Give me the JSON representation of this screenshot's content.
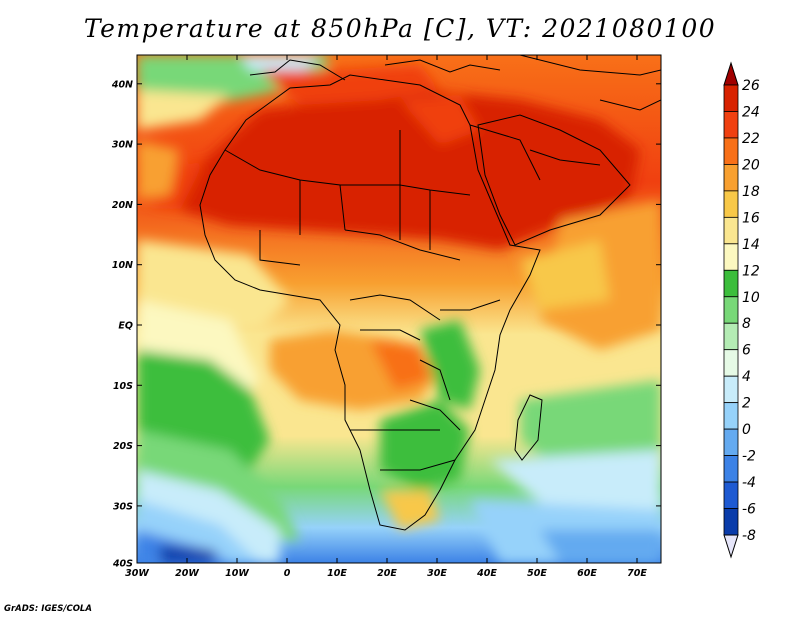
{
  "title": "Temperature at 850hPa [C], VT: 2021080100",
  "credit": "GrADS: IGES/COLA",
  "axes": {
    "x_ticks": [
      "30W",
      "20W",
      "10W",
      "0",
      "10E",
      "20E",
      "30E",
      "40E",
      "50E",
      "60E",
      "70E"
    ],
    "y_ticks": [
      "40N",
      "30N",
      "20N",
      "10N",
      "EQ",
      "10S",
      "20S",
      "30S",
      "40S"
    ],
    "lon_range": [
      -30,
      75
    ],
    "lat_range": [
      -40,
      43
    ]
  },
  "colorbar": {
    "labels": [
      "26",
      "24",
      "22",
      "20",
      "18",
      "16",
      "14",
      "12",
      "10",
      "8",
      "6",
      "4",
      "2",
      "0",
      "-2",
      "-4",
      "-6",
      "-8"
    ],
    "colors": [
      "#a00000",
      "#d82200",
      "#f04010",
      "#f87018",
      "#f8a030",
      "#f8c848",
      "#fae690",
      "#fcf8c0",
      "#3cbe3c",
      "#78d878",
      "#b4ecb4",
      "#e6fae6",
      "#c8ecfa",
      "#96d2fa",
      "#64aaf0",
      "#3c82e6",
      "#1e5ad2",
      "#0a3caa",
      "#0a1e78",
      "#e6e6fa"
    ]
  }
}
